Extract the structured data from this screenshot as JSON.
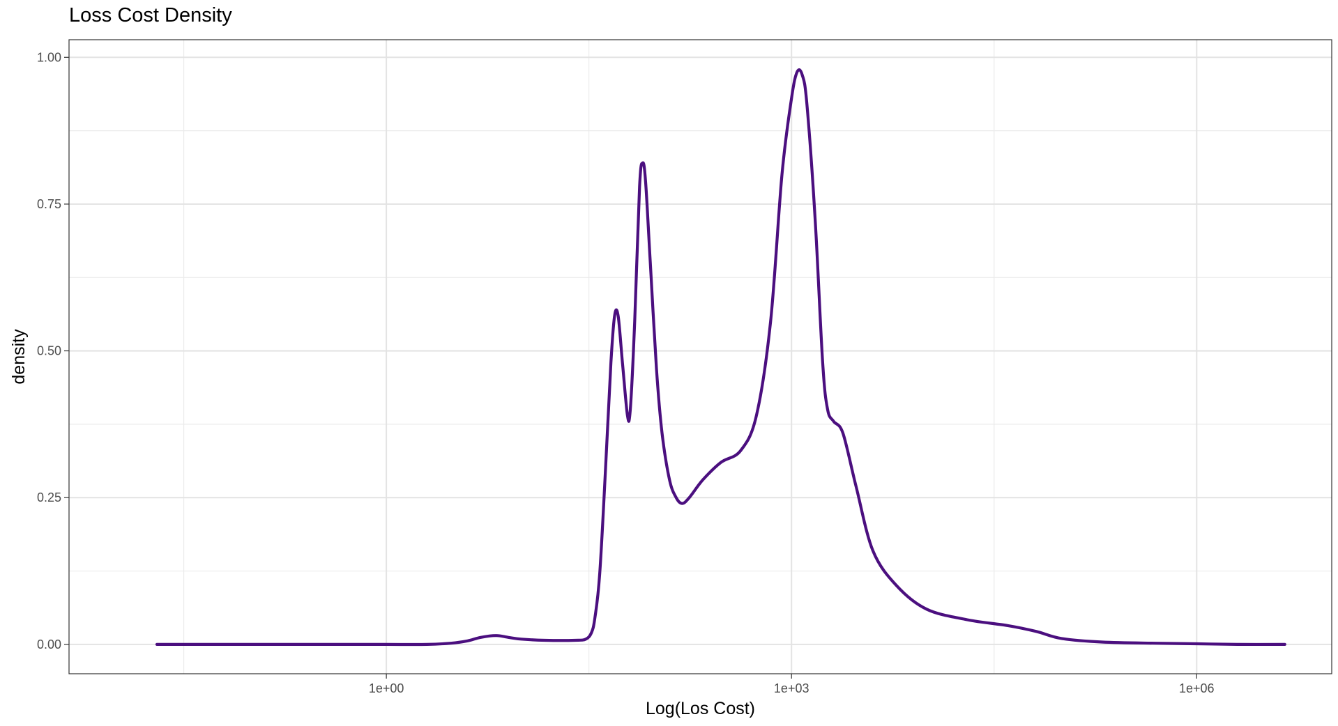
{
  "chart_data": {
    "type": "line",
    "title": "Loss Cost Density",
    "xlabel": "Log(Los Cost)",
    "ylabel": "density",
    "x_scale": "log10",
    "xlim": [
      0.00447,
      10000000
    ],
    "ylim": [
      -0.05,
      1.03
    ],
    "x_ticks": [
      {
        "value": 1,
        "label": "1e+00"
      },
      {
        "value": 1000,
        "label": "1e+03"
      },
      {
        "value": 1000000,
        "label": "1e+06"
      }
    ],
    "y_ticks": [
      {
        "value": 0.0,
        "label": "0.00"
      },
      {
        "value": 0.25,
        "label": "0.25"
      },
      {
        "value": 0.5,
        "label": "0.50"
      },
      {
        "value": 0.75,
        "label": "0.75"
      },
      {
        "value": 1.0,
        "label": "1.00"
      }
    ],
    "grid": true,
    "line_color": "#4B0F7F",
    "series": [
      {
        "points": [
          [
            0.02,
            0.0
          ],
          [
            0.05,
            0.0
          ],
          [
            0.2,
            0.0
          ],
          [
            0.5,
            0.0
          ],
          [
            1,
            0.0
          ],
          [
            2,
            0.0
          ],
          [
            3,
            0.002
          ],
          [
            4,
            0.006
          ],
          [
            5,
            0.012
          ],
          [
            6.5,
            0.015
          ],
          [
            8,
            0.012
          ],
          [
            10,
            0.009
          ],
          [
            15,
            0.007
          ],
          [
            25,
            0.007
          ],
          [
            30,
            0.009
          ],
          [
            33,
            0.02
          ],
          [
            35,
            0.045
          ],
          [
            38,
            0.12
          ],
          [
            42,
            0.3
          ],
          [
            46,
            0.48
          ],
          [
            49,
            0.56
          ],
          [
            52,
            0.56
          ],
          [
            56,
            0.48
          ],
          [
            61,
            0.39
          ],
          [
            64,
            0.4
          ],
          [
            69,
            0.55
          ],
          [
            75,
            0.78
          ],
          [
            79,
            0.82
          ],
          [
            83,
            0.79
          ],
          [
            90,
            0.65
          ],
          [
            100,
            0.47
          ],
          [
            110,
            0.36
          ],
          [
            125,
            0.28
          ],
          [
            140,
            0.25
          ],
          [
            155,
            0.24
          ],
          [
            175,
            0.25
          ],
          [
            220,
            0.28
          ],
          [
            300,
            0.31
          ],
          [
            420,
            0.33
          ],
          [
            550,
            0.39
          ],
          [
            700,
            0.55
          ],
          [
            850,
            0.8
          ],
          [
            1000,
            0.93
          ],
          [
            1100,
            0.975
          ],
          [
            1200,
            0.97
          ],
          [
            1300,
            0.92
          ],
          [
            1500,
            0.72
          ],
          [
            1700,
            0.48
          ],
          [
            1850,
            0.4
          ],
          [
            2050,
            0.38
          ],
          [
            2400,
            0.36
          ],
          [
            3000,
            0.27
          ],
          [
            4000,
            0.16
          ],
          [
            6000,
            0.1
          ],
          [
            10000,
            0.06
          ],
          [
            20000,
            0.042
          ],
          [
            40000,
            0.032
          ],
          [
            65000,
            0.022
          ],
          [
            100000,
            0.01
          ],
          [
            200000,
            0.004
          ],
          [
            500000,
            0.002
          ],
          [
            1000000,
            0.001
          ],
          [
            2000000,
            0.0
          ],
          [
            4500000,
            0.0
          ]
        ]
      }
    ]
  }
}
